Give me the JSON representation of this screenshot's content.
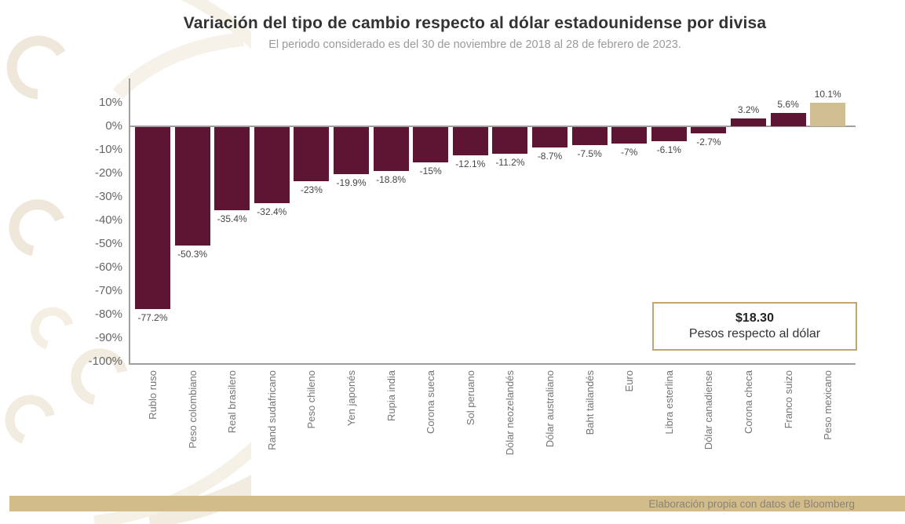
{
  "title": "Variación del tipo de cambio respecto al dólar estadounidense por divisa",
  "subtitle": "El periodo considerado es del 30 de noviembre de 2018 al 28 de febrero de 2023.",
  "chart_data": {
    "type": "bar",
    "categories": [
      "Rublo ruso",
      "Peso colombiano",
      "Real brasilero",
      "Rand sudafricano",
      "Peso chileno",
      "Yen japonés",
      "Rupia india",
      "Corona sueca",
      "Sol peruano",
      "Dólar neozelandés",
      "Dólar australiano",
      "Baht tailandés",
      "Euro",
      "Libra esterlina",
      "Dólar canadiense",
      "Corona checa",
      "Franco suizo",
      "Peso mexicano"
    ],
    "values": [
      -77.2,
      -50.3,
      -35.4,
      -32.4,
      -23,
      -19.9,
      -18.8,
      -15,
      -12.1,
      -11.2,
      -8.7,
      -7.5,
      -7,
      -6.1,
      -2.7,
      3.2,
      5.6,
      10.1
    ],
    "labels": [
      "-77.2%",
      "-50.3%",
      "-35.4%",
      "-32.4%",
      "-23%",
      "-19.9%",
      "-18.8%",
      "-15%",
      "-12.1%",
      "-11.2%",
      "-8.7%",
      "-7.5%",
      "-7%",
      "-6.1%",
      "-2.7%",
      "3.2%",
      "5.6%",
      "10.1%"
    ],
    "ytick_labels": [
      "10%",
      "0%",
      "-10%",
      "-20%",
      "-30%",
      "-40%",
      "-50%",
      "-60%",
      "-70%",
      "-80%",
      "-90%",
      "-100%"
    ],
    "ylim": [
      -100,
      10
    ],
    "grid": false,
    "legend_position": "none",
    "bar_color": "#5d1533",
    "highlight_color": "#cfbe92",
    "highlight_index": 17
  },
  "callout": {
    "value": "$18.30",
    "label": "Pesos respecto al dólar"
  },
  "footer": {
    "text": "Elaboración propia con datos de Bloomberg"
  },
  "colors": {
    "axis": "#a0a0a0",
    "footer_bg": "#d2bd8a",
    "callout_border": "#c3a472",
    "pattern": "#f2ece0"
  }
}
